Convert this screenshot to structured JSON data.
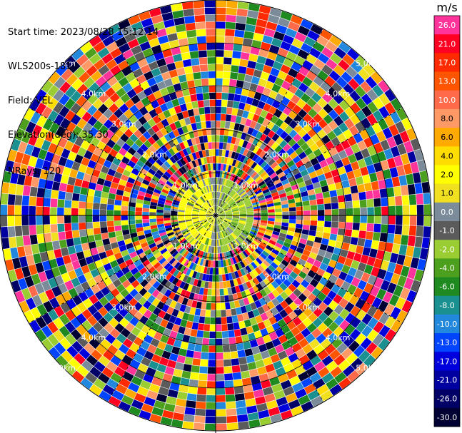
{
  "info": {
    "start_time": "Start time: 2023/08/28 15:12:14",
    "station": "WLS200s-181",
    "field": "Field: VEL",
    "elevation": "Elevation(deg): 35.30",
    "nrays": "NRays: 120"
  },
  "colorbar": {
    "unit": "m/s",
    "levels": [
      {
        "label": "26.0",
        "color": "#ff3399"
      },
      {
        "label": "21.0",
        "color": "#ff0022"
      },
      {
        "label": "17.0",
        "color": "#ff2a00"
      },
      {
        "label": "13.0",
        "color": "#ff5500"
      },
      {
        "label": "10.0",
        "color": "#ff6a4a"
      },
      {
        "label": "8.0",
        "color": "#ff9966"
      },
      {
        "label": "6.0",
        "color": "#ffaa00"
      },
      {
        "label": "4.0",
        "color": "#ffdd00"
      },
      {
        "label": "2.0",
        "color": "#ffff00"
      },
      {
        "label": "1.0",
        "color": "#f0e020"
      },
      {
        "label": "0.0",
        "color": "#7b8b9a"
      },
      {
        "label": "-1.0",
        "color": "#5b5b5b"
      },
      {
        "label": "-2.0",
        "color": "#9acd32"
      },
      {
        "label": "-4.0",
        "color": "#4d9f1e"
      },
      {
        "label": "-6.0",
        "color": "#1f8a1f"
      },
      {
        "label": "-8.0",
        "color": "#1a9090"
      },
      {
        "label": "-10.0",
        "color": "#2288dd"
      },
      {
        "label": "-13.0",
        "color": "#0044ff"
      },
      {
        "label": "-17.0",
        "color": "#0000dd"
      },
      {
        "label": "-21.0",
        "color": "#0000a0"
      },
      {
        "label": "-26.0",
        "color": "#000066"
      },
      {
        "label": "-30.0",
        "color": "#000033"
      }
    ]
  },
  "chart_data": {
    "type": "heatmap",
    "projection": "polar PPI",
    "field": "VEL",
    "units": "m/s",
    "elevation_deg": 35.3,
    "nrays": 120,
    "range_ring_labels": [
      "1.0km",
      "2.0km",
      "3.0km",
      "4.0km",
      "5.0km"
    ],
    "value_range": [
      -30.0,
      26.0
    ],
    "near_field": "Near the radar (inside ~1 km), values are mostly between -2 and 2 m/s (yellow/green/gray); beyond, the field is noisy across the full color scale."
  }
}
